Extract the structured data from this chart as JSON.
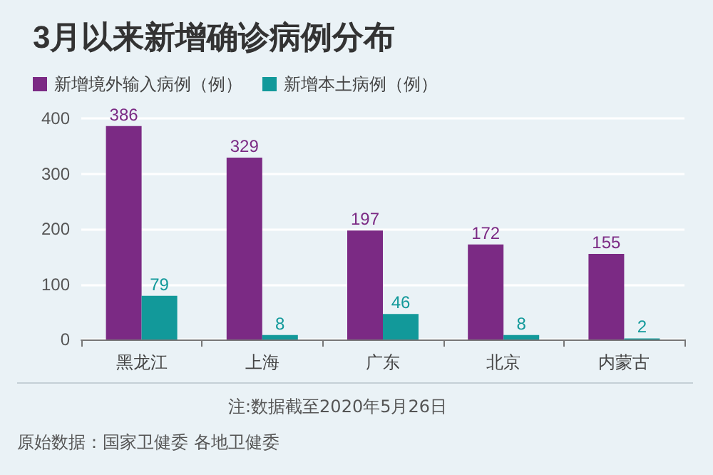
{
  "chart_data": {
    "type": "bar",
    "title": "3月以来新增确诊病例分布",
    "categories": [
      "黑龙江",
      "上海",
      "广东",
      "北京",
      "内蒙古"
    ],
    "series": [
      {
        "name": "新增境外输入病例（例）",
        "color": "#7b2a84",
        "values": [
          386,
          329,
          197,
          172,
          155
        ]
      },
      {
        "name": "新增本土病例（例）",
        "color": "#12999a",
        "values": [
          79,
          8,
          46,
          8,
          2
        ]
      }
    ],
    "ylim": [
      0,
      400
    ],
    "yticks": [
      0,
      100,
      200,
      300,
      400
    ],
    "grid": "y",
    "legend": "top left",
    "data_labels": true,
    "annotations": [
      "注:数据截至2020年5月26日",
      "原始数据：国家卫健委 各地卫健委"
    ]
  }
}
